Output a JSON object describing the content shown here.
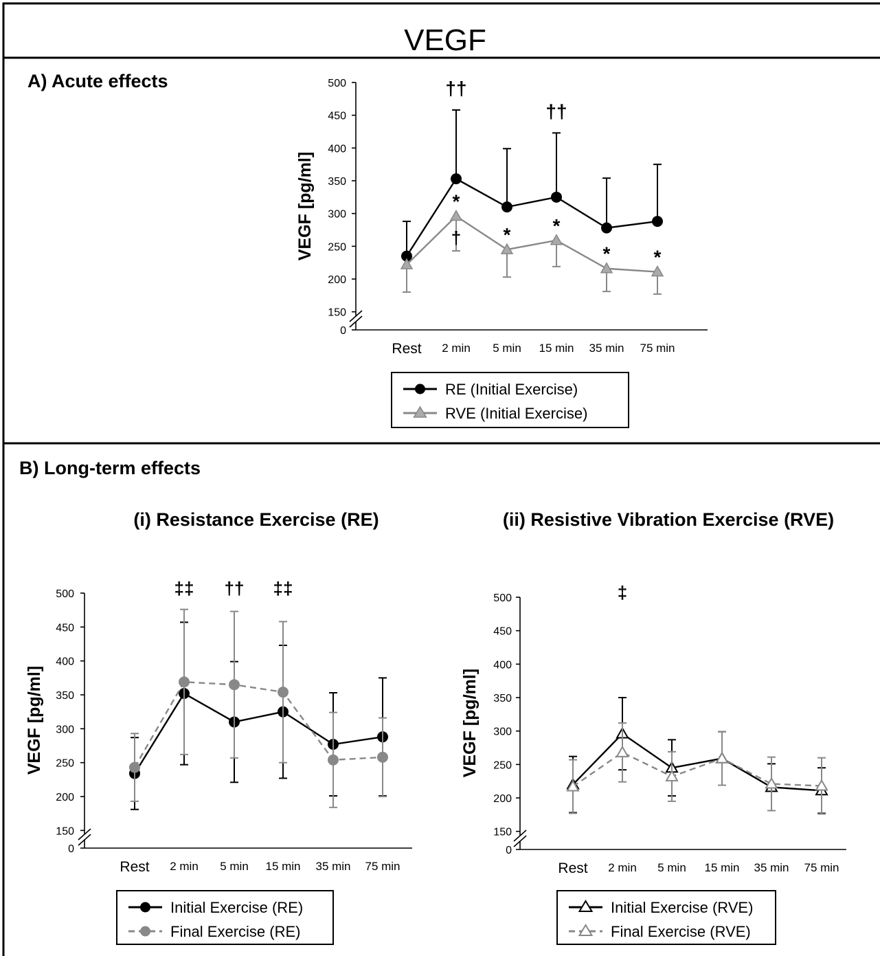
{
  "title": "VEGF",
  "colors": {
    "black": "#000000",
    "gray": "#888888",
    "gray_fill": "#aaaaaa",
    "gray_light": "#999999"
  },
  "chart_data": [
    {
      "panel": "A) Acute effects",
      "type": "line",
      "ylabel": "VEGF [pg/ml]",
      "categories": [
        "Rest",
        "2 min",
        "5 min",
        "15 min",
        "35 min",
        "75 min"
      ],
      "yticks": [
        0,
        150,
        200,
        250,
        300,
        350,
        400,
        450,
        500
      ],
      "ylim": [
        150,
        500
      ],
      "axis_break": true,
      "series": [
        {
          "name": "RE (Initial Exercise)",
          "marker": "circle",
          "color": "#000000",
          "dash": false,
          "values": [
            235,
            353,
            310,
            325,
            278,
            288
          ],
          "errors": [
            53,
            105,
            89,
            98,
            76,
            87
          ],
          "error_dir": "up"
        },
        {
          "name": "RVE (Initial Exercise)",
          "marker": "triangle",
          "color": "#888888",
          "dash": false,
          "values": [
            222,
            296,
            245,
            259,
            216,
            211
          ],
          "errors": [
            42,
            53,
            42,
            40,
            35,
            34
          ],
          "error_dir": "down"
        }
      ],
      "annotations": [
        {
          "x": "2 min",
          "text": "††",
          "pos": "above"
        },
        {
          "x": "15 min",
          "text": "††",
          "pos": "above"
        },
        {
          "x": "2 min",
          "text": "*",
          "pos": "between"
        },
        {
          "x": "5 min",
          "text": "*",
          "pos": "between"
        },
        {
          "x": "15 min",
          "text": "*",
          "pos": "between"
        },
        {
          "x": "35 min",
          "text": "*",
          "pos": "between"
        },
        {
          "x": "75 min",
          "text": "*",
          "pos": "between"
        },
        {
          "x": "2 min",
          "text": "†",
          "pos": "below"
        }
      ],
      "legend": "bottom-center"
    },
    {
      "panel": "B) Long-term effects",
      "subtitle": "(i) Resistance Exercise (RE)",
      "type": "line",
      "ylabel": "VEGF [pg/ml]",
      "categories": [
        "Rest",
        "2 min",
        "5 min",
        "15 min",
        "35 min",
        "75 min"
      ],
      "yticks": [
        0,
        150,
        200,
        250,
        300,
        350,
        400,
        450,
        500
      ],
      "ylim": [
        150,
        500
      ],
      "axis_break": true,
      "series": [
        {
          "name": "Initial Exercise (RE)",
          "marker": "circle",
          "color": "#000000",
          "dash": false,
          "values": [
            234,
            352,
            310,
            325,
            277,
            288
          ],
          "errors": [
            53,
            105,
            89,
            98,
            76,
            87
          ],
          "error_dir": "both"
        },
        {
          "name": "Final Exercise (RE)",
          "marker": "circle",
          "color": "#888888",
          "dash": true,
          "values": [
            243,
            369,
            365,
            354,
            254,
            258
          ],
          "errors": [
            50,
            107,
            108,
            104,
            70,
            58
          ],
          "error_dir": "both"
        }
      ],
      "annotations": [
        {
          "x": "2 min",
          "text": "‡‡",
          "color": "#000000"
        },
        {
          "x": "5 min",
          "text": "††",
          "color": "#999999"
        },
        {
          "x": "15 min",
          "text": "‡‡",
          "color": "#000000"
        }
      ],
      "legend": "bottom-center"
    },
    {
      "subtitle": "(ii) Resistive Vibration Exercise (RVE)",
      "type": "line",
      "ylabel": "VEGF [pg/ml]",
      "categories": [
        "Rest",
        "2 min",
        "5 min",
        "15 min",
        "35 min",
        "75 min"
      ],
      "yticks": [
        0,
        150,
        200,
        250,
        300,
        350,
        400,
        450,
        500
      ],
      "ylim": [
        150,
        500
      ],
      "axis_break": true,
      "series": [
        {
          "name": "Initial Exercise (RVE)",
          "marker": "open-triangle",
          "color": "#000000",
          "dash": false,
          "values": [
            220,
            296,
            245,
            259,
            216,
            211
          ],
          "errors": [
            42,
            54,
            42,
            40,
            35,
            34
          ],
          "error_dir": "both"
        },
        {
          "name": "Final Exercise (RVE)",
          "marker": "open-triangle",
          "color": "#888888",
          "dash": true,
          "values": [
            217,
            268,
            232,
            259,
            221,
            218
          ],
          "errors": [
            40,
            44,
            37,
            40,
            40,
            42
          ],
          "error_dir": "both"
        }
      ],
      "annotations": [
        {
          "x": "2 min",
          "text": "‡",
          "color": "#000000"
        }
      ],
      "legend": "bottom-center"
    }
  ]
}
